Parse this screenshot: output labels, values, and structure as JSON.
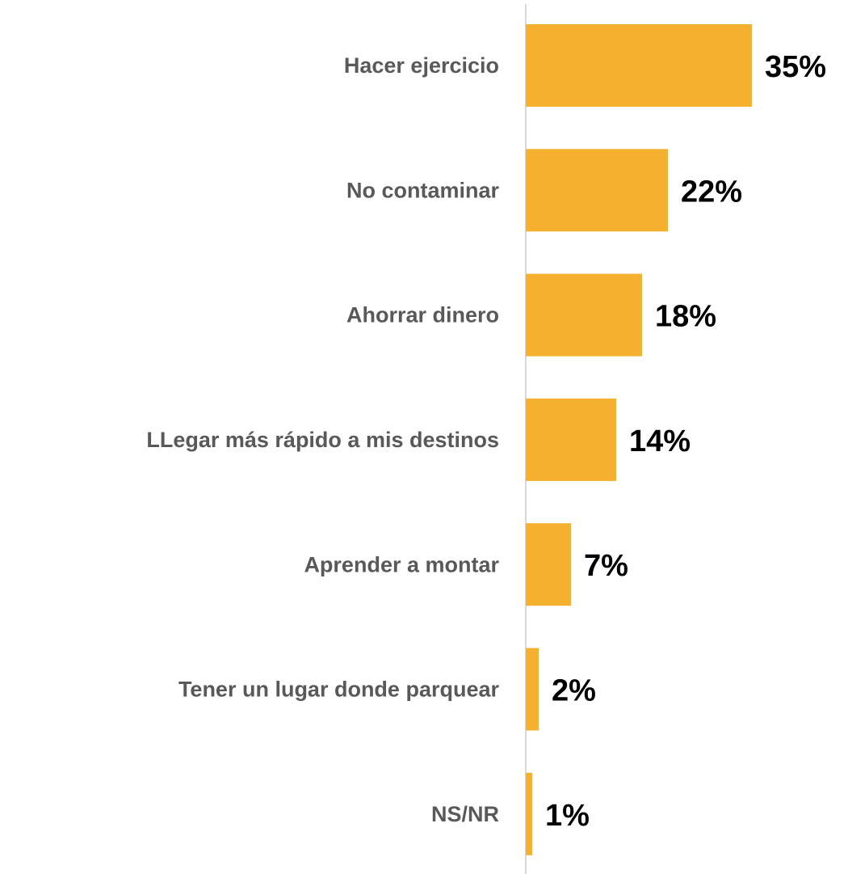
{
  "chart_data": {
    "type": "bar",
    "orientation": "horizontal",
    "categories": [
      "Hacer ejercicio",
      "No contaminar",
      "Ahorrar dinero",
      "LLegar más rápido a mis destinos",
      "Aprender a montar",
      "Tener un lugar donde parquear",
      "NS/NR"
    ],
    "values": [
      35,
      22,
      18,
      14,
      7,
      2,
      1
    ],
    "value_labels": [
      "35%",
      "22%",
      "18%",
      "14%",
      "7%",
      "2%",
      "1%"
    ],
    "color": "#f4b02e",
    "xlim": [
      0,
      40
    ]
  }
}
